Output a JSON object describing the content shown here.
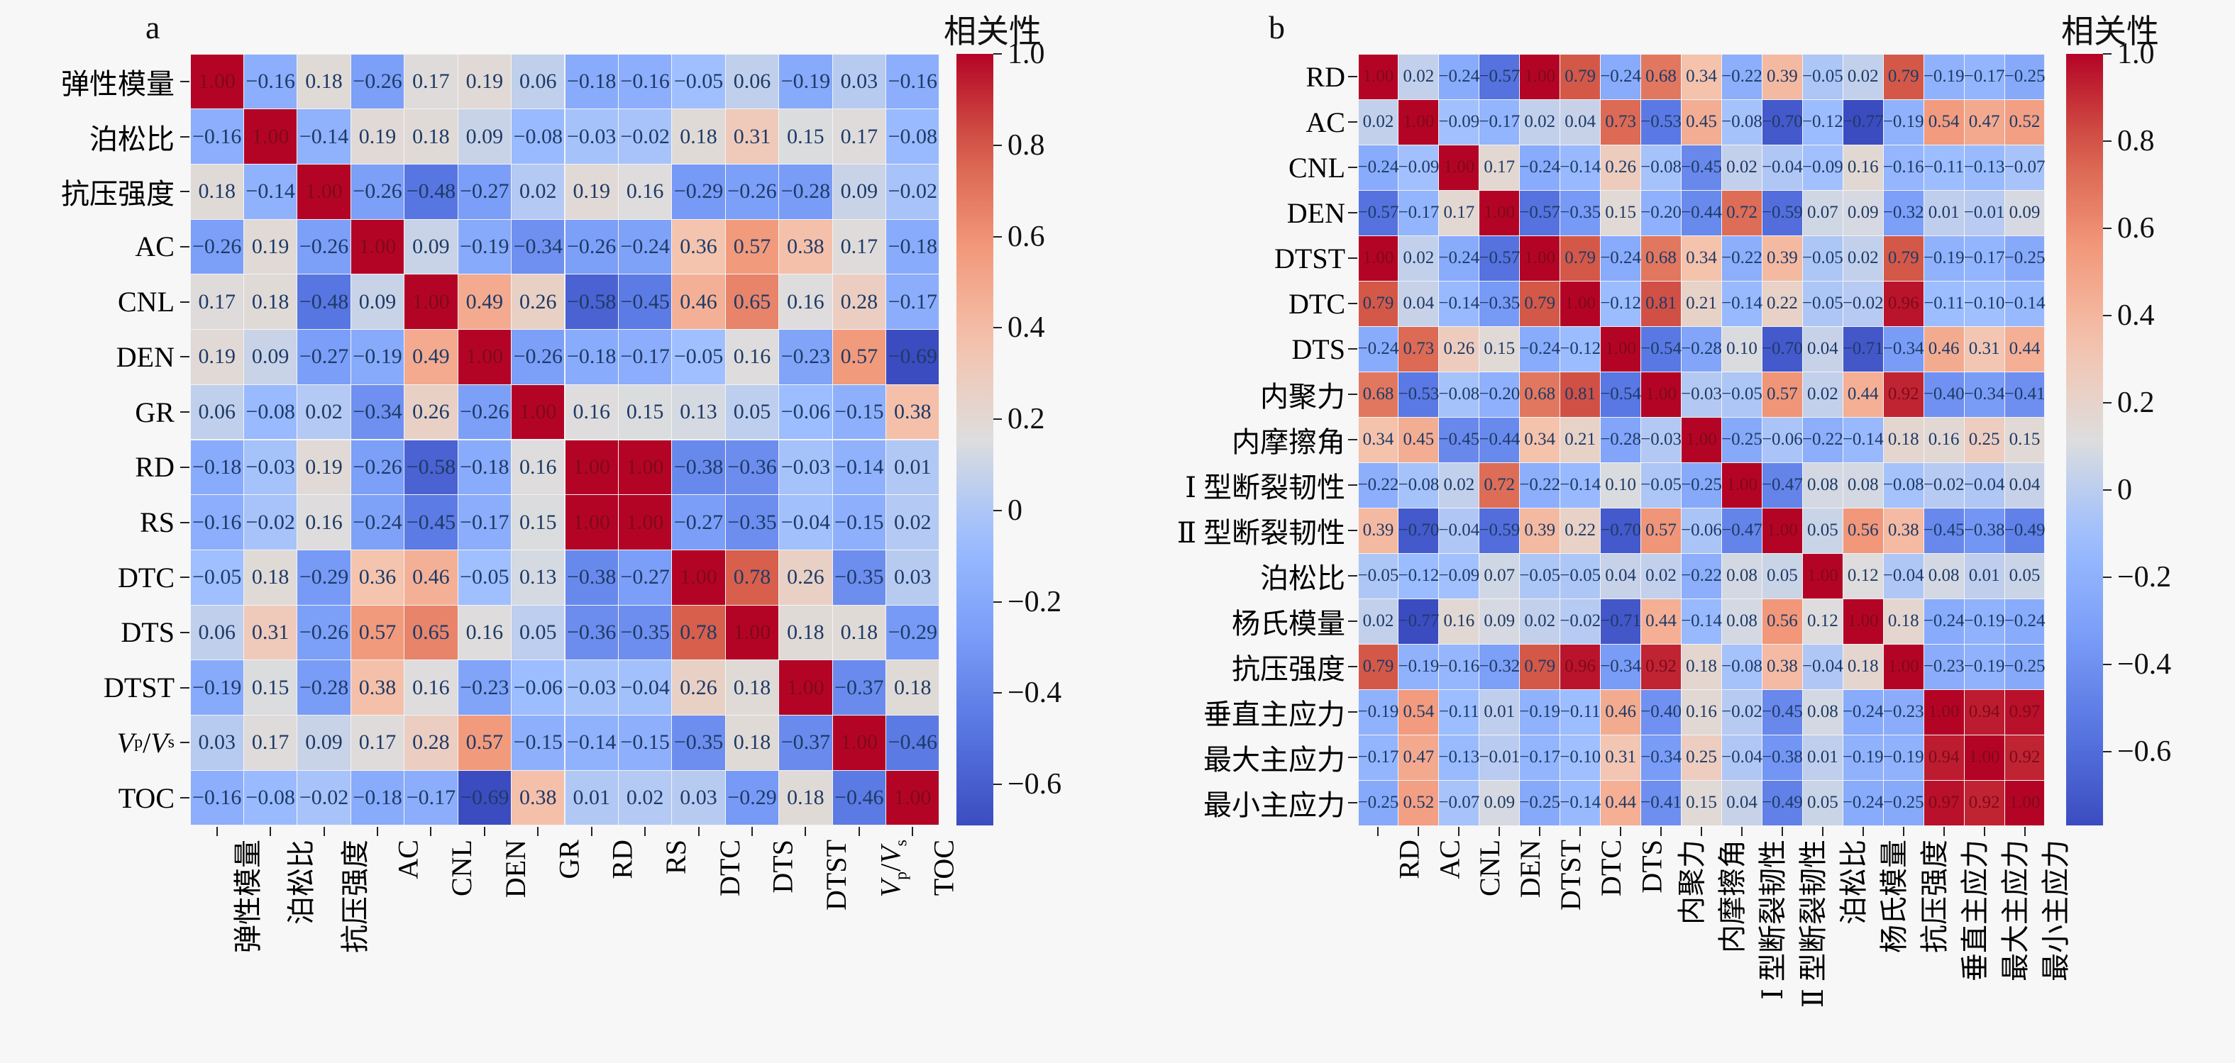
{
  "colors": {
    "background": "#f7f7f7",
    "cell_text": "#1d3a66",
    "dark_cell_text": "#7e0a18",
    "tick": "#222222",
    "label_text": "#000000",
    "grid_gap": "#f3f3f5",
    "colormap_anchors": [
      [
        0.0,
        "#3b4cc0"
      ],
      [
        0.125,
        "#5876e2"
      ],
      [
        0.25,
        "#7b9ef8"
      ],
      [
        0.375,
        "#9dbeff"
      ],
      [
        0.5,
        "#dddddd"
      ],
      [
        0.625,
        "#f5c3ad"
      ],
      [
        0.75,
        "#f2987a"
      ],
      [
        0.875,
        "#d65d4a"
      ],
      [
        1.0,
        "#b40426"
      ]
    ]
  },
  "chart_data": [
    {
      "type": "heatmap",
      "panel_label": "a",
      "title": "",
      "legend_position": "right",
      "grid": false,
      "variables": [
        "弹性模量",
        "泊松比",
        "抗压强度",
        "AC",
        "CNL",
        "DEN",
        "GR",
        "RD",
        "RS",
        "DTC",
        "DTS",
        "DTST",
        "V_p/V_s",
        "TOC"
      ],
      "matrix": [
        [
          1.0,
          -0.16,
          0.18,
          -0.26,
          0.17,
          0.19,
          0.06,
          -0.18,
          -0.16,
          -0.05,
          0.06,
          -0.19,
          0.03,
          -0.16
        ],
        [
          -0.16,
          1.0,
          -0.14,
          0.19,
          0.18,
          0.09,
          -0.08,
          -0.03,
          -0.02,
          0.18,
          0.31,
          0.15,
          0.17,
          -0.08
        ],
        [
          0.18,
          -0.14,
          1.0,
          -0.26,
          -0.48,
          -0.27,
          0.02,
          0.19,
          0.16,
          -0.29,
          -0.26,
          -0.28,
          0.09,
          -0.02
        ],
        [
          -0.26,
          0.19,
          -0.26,
          1.0,
          0.09,
          -0.19,
          -0.34,
          -0.26,
          -0.24,
          0.36,
          0.57,
          0.38,
          0.17,
          -0.18
        ],
        [
          0.17,
          0.18,
          -0.48,
          0.09,
          1.0,
          0.49,
          0.26,
          -0.58,
          -0.45,
          0.46,
          0.65,
          0.16,
          0.28,
          -0.17
        ],
        [
          0.19,
          0.09,
          -0.27,
          -0.19,
          0.49,
          1.0,
          -0.26,
          -0.18,
          -0.17,
          -0.05,
          0.16,
          -0.23,
          0.57,
          -0.69
        ],
        [
          0.06,
          -0.08,
          0.02,
          -0.34,
          0.26,
          -0.26,
          1.0,
          0.16,
          0.15,
          0.13,
          0.05,
          -0.06,
          -0.15,
          0.38
        ],
        [
          -0.18,
          -0.03,
          0.19,
          -0.26,
          -0.58,
          -0.18,
          0.16,
          1.0,
          1.0,
          -0.38,
          -0.36,
          -0.03,
          -0.14,
          0.01
        ],
        [
          -0.16,
          -0.02,
          0.16,
          -0.24,
          -0.45,
          -0.17,
          0.15,
          1.0,
          1.0,
          -0.27,
          -0.35,
          -0.04,
          -0.15,
          0.02
        ],
        [
          -0.05,
          0.18,
          -0.29,
          0.36,
          0.46,
          -0.05,
          0.13,
          -0.38,
          -0.27,
          1.0,
          0.78,
          0.26,
          -0.35,
          0.03
        ],
        [
          0.06,
          0.31,
          -0.26,
          0.57,
          0.65,
          0.16,
          0.05,
          -0.36,
          -0.35,
          0.78,
          1.0,
          0.18,
          0.18,
          -0.29
        ],
        [
          -0.19,
          0.15,
          -0.28,
          0.38,
          0.16,
          -0.23,
          -0.06,
          -0.03,
          -0.04,
          0.26,
          0.18,
          1.0,
          -0.37,
          0.18
        ],
        [
          0.03,
          0.17,
          0.09,
          0.17,
          0.28,
          0.57,
          -0.15,
          -0.14,
          -0.15,
          -0.35,
          0.18,
          -0.37,
          1.0,
          -0.46
        ],
        [
          -0.16,
          -0.08,
          -0.02,
          -0.18,
          -0.17,
          -0.69,
          0.38,
          0.01,
          0.02,
          0.03,
          -0.29,
          0.18,
          -0.46,
          1.0
        ]
      ],
      "colorbar": {
        "title": "相关性",
        "tick_labels": [
          "1.0",
          "0.8",
          "0.6",
          "0.4",
          "0.2",
          "0",
          "−0.2",
          "−0.4",
          "−0.6"
        ],
        "tick_values": [
          1.0,
          0.8,
          0.6,
          0.4,
          0.2,
          0,
          -0.2,
          -0.4,
          -0.6
        ],
        "vmin": -0.69,
        "vmax": 1.0
      }
    },
    {
      "type": "heatmap",
      "panel_label": "b",
      "title": "",
      "legend_position": "right",
      "grid": false,
      "variables": [
        "RD",
        "AC",
        "CNL",
        "DEN",
        "DTST",
        "DTC",
        "DTS",
        "内聚力",
        "内摩擦角",
        "Ⅰ 型断裂韧性",
        "Ⅱ 型断裂韧性",
        "泊松比",
        "杨氏模量",
        "抗压强度",
        "垂直主应力",
        "最大主应力",
        "最小主应力"
      ],
      "matrix": [
        [
          1.0,
          0.02,
          -0.24,
          -0.57,
          1.0,
          0.79,
          -0.24,
          0.68,
          0.34,
          -0.22,
          0.39,
          -0.05,
          0.02,
          0.79,
          -0.19,
          -0.17,
          -0.25
        ],
        [
          0.02,
          1.0,
          -0.09,
          -0.17,
          0.02,
          0.04,
          0.73,
          -0.53,
          0.45,
          -0.08,
          -0.7,
          -0.12,
          -0.77,
          -0.19,
          0.54,
          0.47,
          0.52
        ],
        [
          -0.24,
          -0.09,
          1.0,
          0.17,
          -0.24,
          -0.14,
          0.26,
          -0.08,
          -0.45,
          0.02,
          -0.04,
          -0.09,
          0.16,
          -0.16,
          -0.11,
          -0.13,
          -0.07
        ],
        [
          -0.57,
          -0.17,
          0.17,
          1.0,
          -0.57,
          -0.35,
          0.15,
          -0.2,
          -0.44,
          0.72,
          -0.59,
          0.07,
          0.09,
          -0.32,
          0.01,
          -0.01,
          0.09
        ],
        [
          1.0,
          0.02,
          -0.24,
          -0.57,
          1.0,
          0.79,
          -0.24,
          0.68,
          0.34,
          -0.22,
          0.39,
          -0.05,
          0.02,
          0.79,
          -0.19,
          -0.17,
          -0.25
        ],
        [
          0.79,
          0.04,
          -0.14,
          -0.35,
          0.79,
          1.0,
          -0.12,
          0.81,
          0.21,
          -0.14,
          0.22,
          -0.05,
          -0.02,
          0.96,
          -0.11,
          -0.1,
          -0.14
        ],
        [
          -0.24,
          0.73,
          0.26,
          0.15,
          -0.24,
          -0.12,
          1.0,
          -0.54,
          -0.28,
          0.1,
          -0.7,
          0.04,
          -0.71,
          -0.34,
          0.46,
          0.31,
          0.44
        ],
        [
          0.68,
          -0.53,
          -0.08,
          -0.2,
          0.68,
          0.81,
          -0.54,
          1.0,
          -0.03,
          -0.05,
          0.57,
          0.02,
          0.44,
          0.92,
          -0.4,
          -0.34,
          -0.41
        ],
        [
          0.34,
          0.45,
          -0.45,
          -0.44,
          0.34,
          0.21,
          -0.28,
          -0.03,
          1.0,
          -0.25,
          -0.06,
          -0.22,
          -0.14,
          0.18,
          0.16,
          0.25,
          0.15
        ],
        [
          -0.22,
          -0.08,
          0.02,
          0.72,
          -0.22,
          -0.14,
          0.1,
          -0.05,
          -0.25,
          1.0,
          -0.47,
          0.08,
          0.08,
          -0.08,
          -0.02,
          -0.04,
          0.04
        ],
        [
          0.39,
          -0.7,
          -0.04,
          -0.59,
          0.39,
          0.22,
          -0.7,
          0.57,
          -0.06,
          -0.47,
          1.0,
          0.05,
          0.56,
          0.38,
          -0.45,
          -0.38,
          -0.49
        ],
        [
          -0.05,
          -0.12,
          -0.09,
          0.07,
          -0.05,
          -0.05,
          0.04,
          0.02,
          -0.22,
          0.08,
          0.05,
          1.0,
          0.12,
          -0.04,
          0.08,
          0.01,
          0.05
        ],
        [
          0.02,
          -0.77,
          0.16,
          0.09,
          0.02,
          -0.02,
          -0.71,
          0.44,
          -0.14,
          0.08,
          0.56,
          0.12,
          1.0,
          0.18,
          -0.24,
          -0.19,
          -0.24
        ],
        [
          0.79,
          -0.19,
          -0.16,
          -0.32,
          0.79,
          0.96,
          -0.34,
          0.92,
          0.18,
          -0.08,
          0.38,
          -0.04,
          0.18,
          1.0,
          -0.23,
          -0.19,
          -0.25
        ],
        [
          -0.19,
          0.54,
          -0.11,
          0.01,
          -0.19,
          -0.11,
          0.46,
          -0.4,
          0.16,
          -0.02,
          -0.45,
          0.08,
          -0.24,
          -0.23,
          1.0,
          0.94,
          0.97
        ],
        [
          -0.17,
          0.47,
          -0.13,
          -0.01,
          -0.17,
          -0.1,
          0.31,
          -0.34,
          0.25,
          -0.04,
          -0.38,
          0.01,
          -0.19,
          -0.19,
          0.94,
          1.0,
          0.92
        ],
        [
          -0.25,
          0.52,
          -0.07,
          0.09,
          -0.25,
          -0.14,
          0.44,
          -0.41,
          0.15,
          0.04,
          -0.49,
          0.05,
          -0.24,
          -0.25,
          0.97,
          0.92,
          1.0
        ]
      ],
      "colorbar": {
        "title": "相关性",
        "tick_labels": [
          "1.0",
          "0.8",
          "0.6",
          "0.4",
          "0.2",
          "0",
          "−0.2",
          "−0.4",
          "−0.6"
        ],
        "tick_values": [
          1.0,
          0.8,
          0.6,
          0.4,
          0.2,
          0,
          -0.2,
          -0.4,
          -0.6
        ],
        "vmin": -0.77,
        "vmax": 1.0
      }
    }
  ]
}
